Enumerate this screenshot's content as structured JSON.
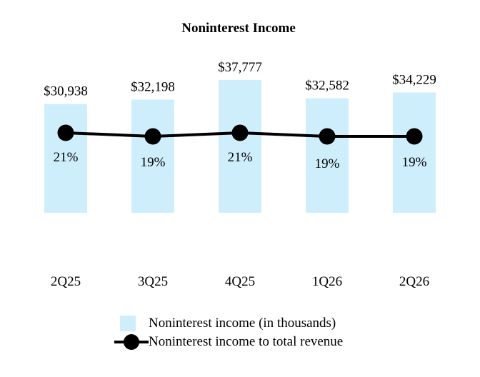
{
  "chart_data": {
    "type": "bar",
    "title": "Noninterest Income",
    "categories": [
      "2Q25",
      "3Q25",
      "4Q25",
      "1Q26",
      "2Q26"
    ],
    "series": [
      {
        "name": "Noninterest income (in thousands)",
        "type": "bar",
        "values": [
          30938,
          32198,
          37777,
          32582,
          34229
        ],
        "labels": [
          "$30,938",
          "$32,198",
          "$37,777",
          "$32,582",
          "$34,229"
        ],
        "color": "#cfeefc"
      },
      {
        "name": "Noninterest income to total revenue",
        "type": "line",
        "values": [
          21,
          19,
          21,
          19,
          19
        ],
        "labels": [
          "21%",
          "19%",
          "21%",
          "19%",
          "19%"
        ],
        "color": "#000000"
      }
    ],
    "legend": "bottom-center"
  }
}
